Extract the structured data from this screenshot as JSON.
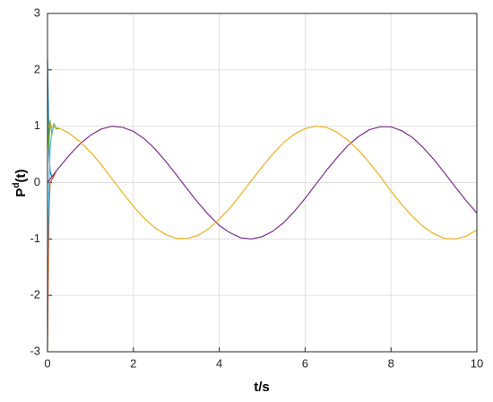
{
  "chart_data": {
    "type": "line",
    "xlabel": "t/s",
    "ylabel": [
      "P",
      "d",
      "(t)"
    ],
    "xlim": [
      0,
      10
    ],
    "xticks": [
      0,
      2,
      4,
      6,
      8,
      10
    ],
    "ylim": [
      -3,
      3
    ],
    "yticks": [
      -3,
      -2,
      -1,
      0,
      1,
      2,
      3
    ],
    "grid": true,
    "series": [
      {
        "color": "#0072BD",
        "x": [
          0,
          0.02,
          0.04,
          0.06,
          0.1,
          0.15,
          0.2
        ],
        "values": [
          2.2,
          1.2,
          0.5,
          0.2,
          0.1,
          0.15,
          0.2
        ]
      },
      {
        "color": "#D95319",
        "x": [
          0,
          0.02,
          0.04,
          0.06,
          0.1,
          0.15,
          0.2
        ],
        "values": [
          -3,
          -1.3,
          -0.4,
          0,
          0.05,
          0.12,
          0.2
        ]
      },
      {
        "color": "#77AC30",
        "x": [
          0,
          0.03,
          0.06,
          0.1,
          0.15,
          0.2,
          0.3
        ],
        "values": [
          1.3,
          0.6,
          1.1,
          0.85,
          1.05,
          0.95,
          0.96
        ]
      },
      {
        "color": "#4DBEEE",
        "x": [
          0,
          0.03,
          0.06,
          0.1,
          0.15,
          0.2
        ],
        "values": [
          -1.4,
          -0.3,
          0.6,
          0.9,
          1.0,
          0.98
        ]
      },
      {
        "color": "#7E2F8E",
        "x": [
          0,
          0.25,
          0.5,
          0.75,
          1,
          1.25,
          1.5,
          1.75,
          2,
          2.25,
          2.5,
          2.75,
          3,
          3.25,
          3.5,
          3.75,
          4,
          4.25,
          4.5,
          4.75,
          5,
          5.25,
          5.5,
          5.75,
          6,
          6.25,
          6.5,
          6.75,
          7,
          7.25,
          7.5,
          7.75,
          8,
          8.25,
          8.5,
          8.75,
          9,
          9.25,
          9.5,
          9.75,
          10
        ],
        "values": [
          0,
          0.25,
          0.48,
          0.68,
          0.84,
          0.95,
          1.0,
          0.98,
          0.91,
          0.78,
          0.6,
          0.38,
          0.14,
          -0.11,
          -0.35,
          -0.57,
          -0.76,
          -0.89,
          -0.98,
          -1.0,
          -0.96,
          -0.86,
          -0.71,
          -0.51,
          -0.28,
          -0.03,
          0.22,
          0.45,
          0.66,
          0.82,
          0.94,
          0.99,
          0.99,
          0.92,
          0.8,
          0.62,
          0.41,
          0.17,
          -0.08,
          -0.32,
          -0.54
        ]
      },
      {
        "color": "#EDB120",
        "x": [
          0,
          0.25,
          0.5,
          0.75,
          1,
          1.25,
          1.5,
          1.75,
          2,
          2.25,
          2.5,
          2.75,
          3,
          3.25,
          3.5,
          3.75,
          4,
          4.25,
          4.5,
          4.75,
          5,
          5.25,
          5.5,
          5.75,
          6,
          6.25,
          6.5,
          6.75,
          7,
          7.25,
          7.5,
          7.75,
          8,
          8.25,
          8.5,
          8.75,
          9,
          9.25,
          9.5,
          9.75,
          10
        ],
        "values": [
          1,
          0.97,
          0.88,
          0.73,
          0.54,
          0.32,
          0.07,
          -0.18,
          -0.42,
          -0.63,
          -0.8,
          -0.92,
          -0.99,
          -0.99,
          -0.94,
          -0.82,
          -0.65,
          -0.45,
          -0.21,
          0.04,
          0.28,
          0.51,
          0.71,
          0.86,
          0.96,
          1.0,
          0.98,
          0.89,
          0.75,
          0.57,
          0.35,
          0.11,
          -0.15,
          -0.39,
          -0.6,
          -0.78,
          -0.91,
          -0.99,
          -1.0,
          -0.95,
          -0.84
        ]
      }
    ]
  }
}
